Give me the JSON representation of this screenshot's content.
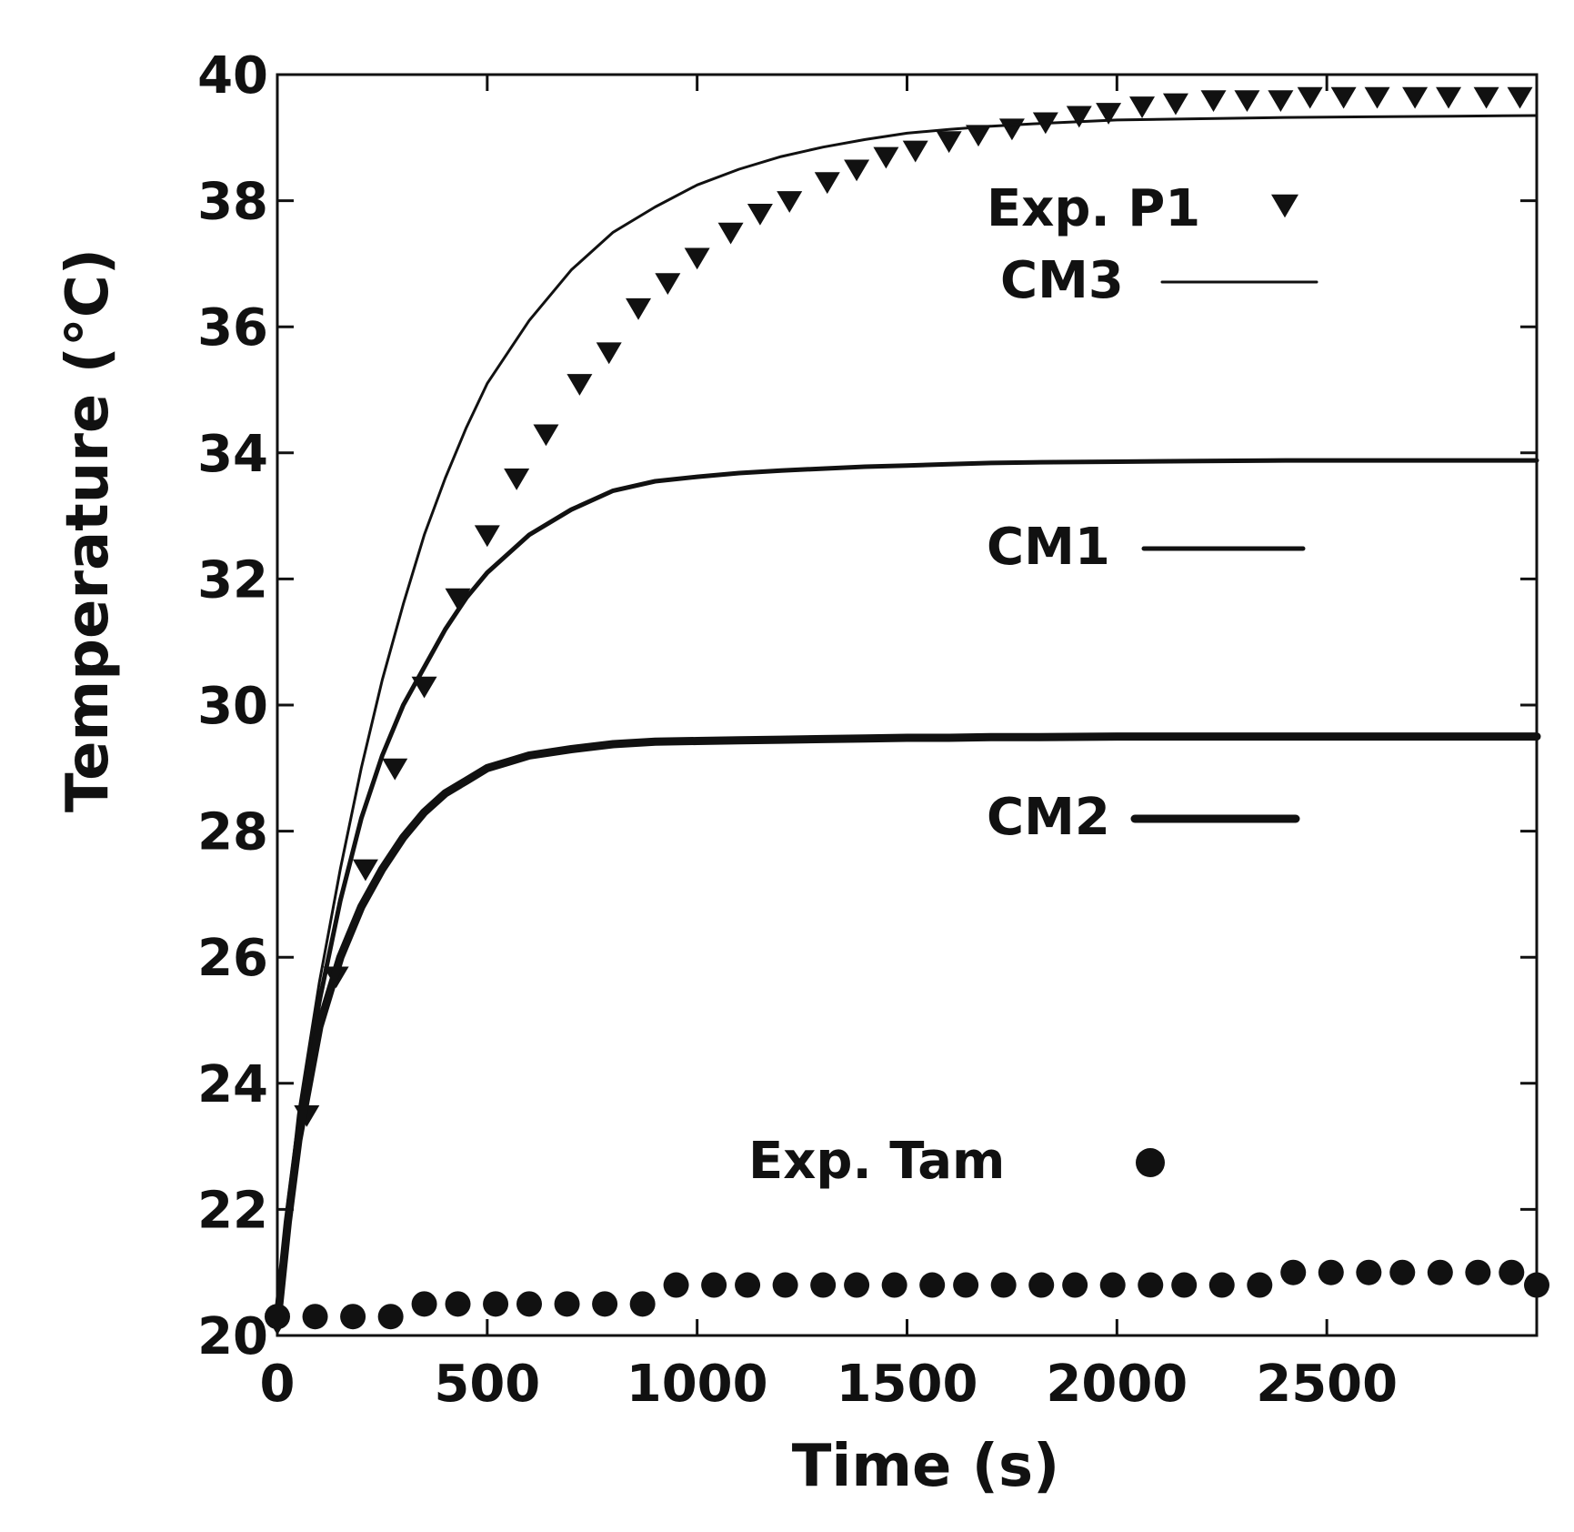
{
  "chart_data": {
    "type": "line",
    "title": "",
    "xlabel": "Time (s)",
    "ylabel": "Temperature (°C)",
    "xlim": [
      0,
      3000
    ],
    "ylim": [
      20,
      40
    ],
    "xticks": [
      0,
      500,
      1000,
      1500,
      2000,
      2500
    ],
    "yticks": [
      20,
      22,
      24,
      26,
      28,
      30,
      32,
      34,
      36,
      38,
      40
    ],
    "grid": false,
    "series": [
      {
        "name": "Exp. P1",
        "kind": "scatter",
        "marker": "triangle-down",
        "x": [
          0,
          70,
          140,
          210,
          280,
          350,
          430,
          500,
          570,
          640,
          720,
          790,
          860,
          930,
          1000,
          1080,
          1150,
          1220,
          1310,
          1380,
          1450,
          1520,
          1600,
          1670,
          1750,
          1830,
          1910,
          1980,
          2060,
          2140,
          2230,
          2310,
          2390,
          2460,
          2540,
          2620,
          2710,
          2790,
          2880,
          2960
        ],
        "y": [
          20.2,
          23.5,
          25.7,
          27.4,
          29.0,
          30.3,
          31.7,
          32.7,
          33.6,
          34.3,
          35.1,
          35.6,
          36.3,
          36.7,
          37.1,
          37.5,
          37.8,
          38.0,
          38.3,
          38.5,
          38.7,
          38.8,
          38.95,
          39.05,
          39.15,
          39.25,
          39.35,
          39.4,
          39.5,
          39.55,
          39.6,
          39.6,
          39.6,
          39.65,
          39.65,
          39.65,
          39.65,
          39.65,
          39.65,
          39.65
        ]
      },
      {
        "name": "CM3",
        "kind": "line",
        "line_width": "thin",
        "x": [
          0,
          25,
          50,
          100,
          150,
          200,
          250,
          300,
          350,
          400,
          450,
          500,
          550,
          600,
          700,
          800,
          900,
          1000,
          1100,
          1200,
          1300,
          1400,
          1500,
          1600,
          1700,
          1800,
          2000,
          2200,
          2400,
          2600,
          2800,
          3000
        ],
        "y": [
          20.2,
          22.0,
          23.5,
          25.6,
          27.4,
          29.0,
          30.4,
          31.6,
          32.7,
          33.6,
          34.4,
          35.1,
          35.6,
          36.1,
          36.9,
          37.5,
          37.9,
          38.25,
          38.5,
          38.7,
          38.85,
          38.97,
          39.07,
          39.13,
          39.18,
          39.22,
          39.28,
          39.3,
          39.32,
          39.33,
          39.34,
          39.35
        ]
      },
      {
        "name": "CM1",
        "kind": "line",
        "line_width": "medium",
        "x": [
          0,
          25,
          50,
          100,
          150,
          200,
          250,
          300,
          350,
          400,
          450,
          500,
          550,
          600,
          700,
          800,
          900,
          1000,
          1100,
          1200,
          1300,
          1400,
          1500,
          1600,
          1700,
          1800,
          2000,
          2200,
          2400,
          2600,
          2800,
          3000
        ],
        "y": [
          20.2,
          22.0,
          23.3,
          25.3,
          26.9,
          28.2,
          29.2,
          30.0,
          30.6,
          31.2,
          31.7,
          32.1,
          32.4,
          32.7,
          33.1,
          33.4,
          33.55,
          33.62,
          33.68,
          33.72,
          33.75,
          33.78,
          33.8,
          33.82,
          33.84,
          33.85,
          33.86,
          33.87,
          33.88,
          33.88,
          33.88,
          33.88
        ]
      },
      {
        "name": "CM2",
        "kind": "line",
        "line_width": "thick",
        "x": [
          0,
          25,
          50,
          100,
          150,
          200,
          250,
          300,
          350,
          400,
          450,
          500,
          550,
          600,
          700,
          800,
          900,
          1000,
          1100,
          1200,
          1300,
          1400,
          1500,
          1600,
          1700,
          1800,
          2000,
          2200,
          2400,
          2600,
          2800,
          3000
        ],
        "y": [
          20.2,
          21.8,
          23.1,
          24.9,
          26.0,
          26.8,
          27.4,
          27.9,
          28.3,
          28.6,
          28.8,
          29.0,
          29.1,
          29.2,
          29.3,
          29.38,
          29.42,
          29.43,
          29.44,
          29.45,
          29.46,
          29.47,
          29.48,
          29.48,
          29.49,
          29.49,
          29.5,
          29.5,
          29.5,
          29.5,
          29.5,
          29.5
        ]
      },
      {
        "name": "Exp. Tam",
        "kind": "scatter",
        "marker": "circle",
        "x": [
          0,
          90,
          180,
          270,
          350,
          430,
          520,
          600,
          690,
          780,
          870,
          950,
          1040,
          1120,
          1210,
          1300,
          1380,
          1470,
          1560,
          1640,
          1730,
          1820,
          1900,
          1990,
          2080,
          2160,
          2250,
          2340,
          2420,
          2510,
          2600,
          2680,
          2770,
          2860,
          2940,
          3000
        ],
        "y": [
          20.3,
          20.3,
          20.3,
          20.3,
          20.5,
          20.5,
          20.5,
          20.5,
          20.5,
          20.5,
          20.5,
          20.8,
          20.8,
          20.8,
          20.8,
          20.8,
          20.8,
          20.8,
          20.8,
          20.8,
          20.8,
          20.8,
          20.8,
          20.8,
          20.8,
          20.8,
          20.8,
          20.8,
          21.0,
          21.0,
          21.0,
          21.0,
          21.0,
          21.0,
          21.0,
          20.8
        ]
      }
    ],
    "legend": [
      {
        "series": "Exp. P1",
        "label": "Exp. P1"
      },
      {
        "series": "CM3",
        "label": "CM3"
      },
      {
        "series": "CM1",
        "label": "CM1"
      },
      {
        "series": "CM2",
        "label": "CM2"
      },
      {
        "series": "Exp. Tam",
        "label": "Exp. Tam"
      }
    ]
  }
}
